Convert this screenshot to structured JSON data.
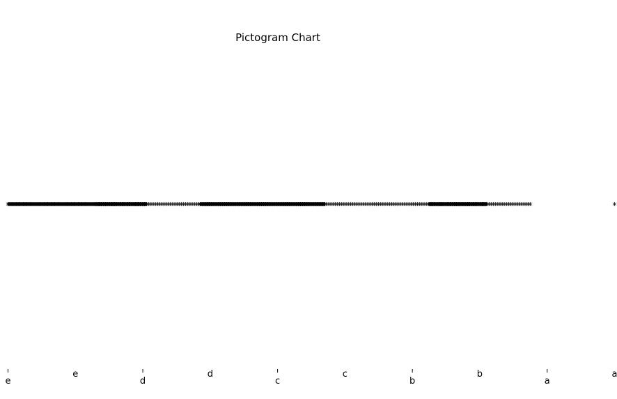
{
  "chart_data": {
    "type": "scatter",
    "title": "Pictogram Chart",
    "xlabel": "",
    "ylabel": "",
    "marker": "*",
    "x_categories": [
      "e",
      "e",
      "d",
      "d",
      "c",
      "c",
      "b",
      "b",
      "a",
      "a"
    ],
    "series": [
      {
        "category": "e",
        "count": 130,
        "x_start": 0.0,
        "x_end": 1.3,
        "color": "#000000"
      },
      {
        "category": "d",
        "count": 80,
        "x_start": 1.3,
        "x_end": 2.05,
        "color": "#000000"
      },
      {
        "category": "c",
        "count": 180,
        "x_start": 2.85,
        "x_end": 4.7,
        "color": "#000000"
      },
      {
        "category": "b",
        "count": 90,
        "x_start": 6.25,
        "x_end": 7.1,
        "color": "#000000"
      },
      {
        "category": "a",
        "count": 200,
        "x_start": 1.35,
        "x_end": 7.75,
        "color": "#000000"
      },
      {
        "category": "a",
        "count": 1,
        "x_start": 9.0,
        "x_end": 9.0,
        "color": "#000000"
      }
    ],
    "xlim": [
      0,
      9
    ],
    "y": 0,
    "grid": false,
    "legend": "none",
    "axes_visible": false
  }
}
